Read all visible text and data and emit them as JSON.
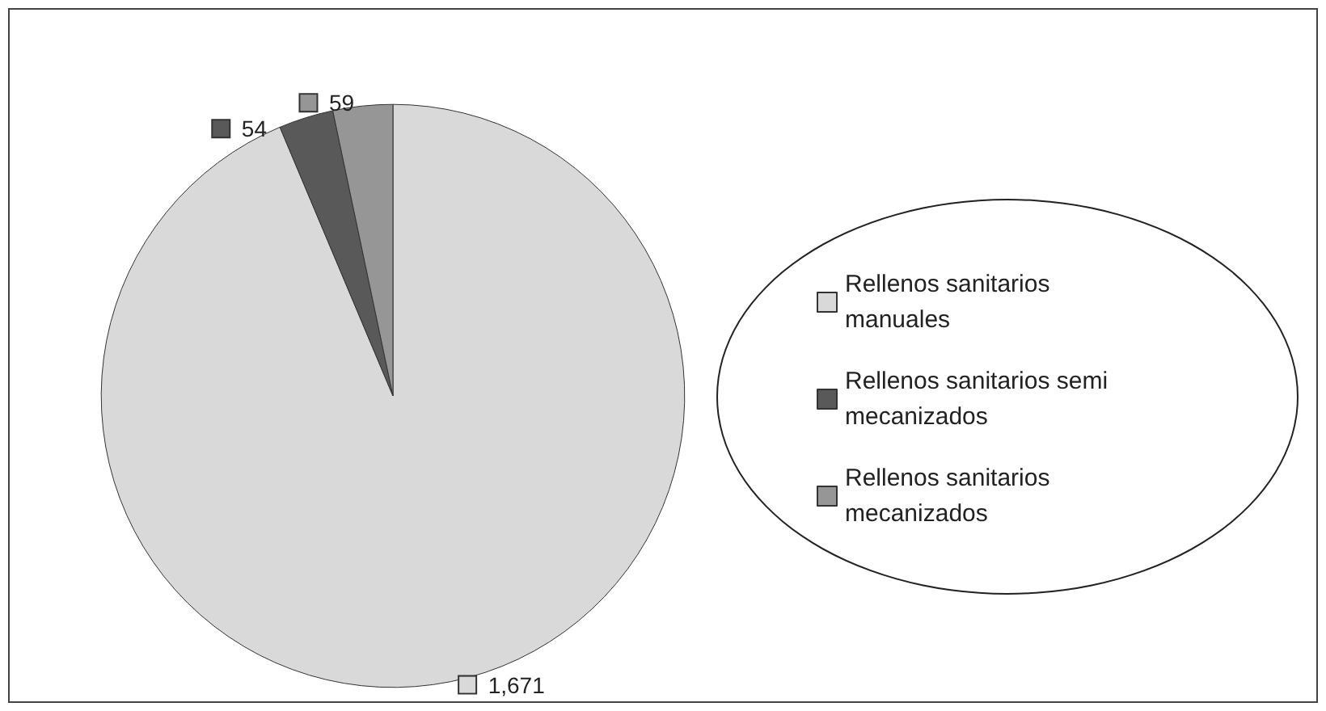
{
  "chart_data": {
    "type": "pie",
    "categories": [
      "Rellenos sanitarios manuales",
      "Rellenos sanitarios semi mecanizados",
      "Rellenos sanitarios mecanizados"
    ],
    "values": [
      1671,
      54,
      59
    ],
    "colors": [
      "#d9d9d9",
      "#595959",
      "#969696"
    ],
    "value_labels": [
      "1,671",
      "54",
      "59"
    ],
    "legend": "right"
  }
}
